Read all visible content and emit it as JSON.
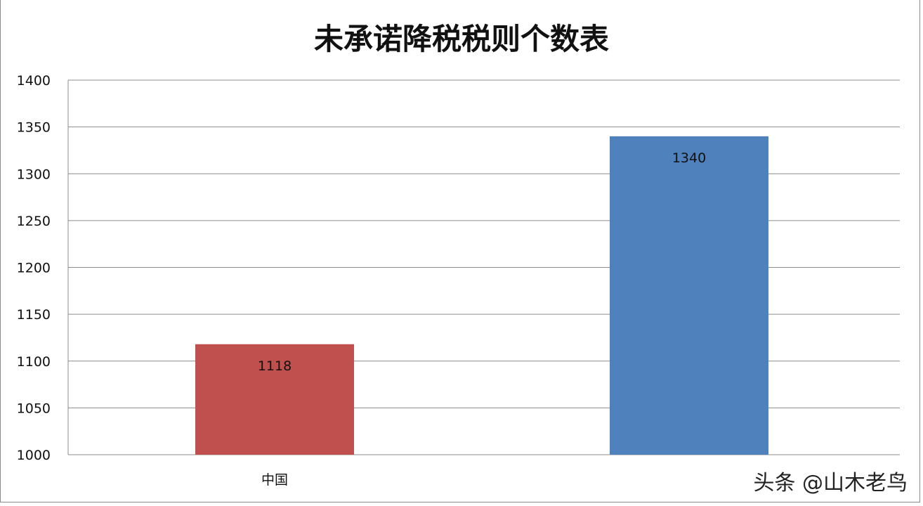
{
  "chart_data": {
    "type": "bar",
    "title": "未承诺降税税则个数表",
    "categories": [
      "中国",
      ""
    ],
    "values": [
      1118,
      1340
    ],
    "colors": [
      "#c0504d",
      "#4f81bd"
    ],
    "ylim": [
      1000,
      1400
    ],
    "yticks": [
      1000,
      1050,
      1100,
      1150,
      1200,
      1250,
      1300,
      1350,
      1400
    ],
    "grid": true,
    "data_labels": true
  },
  "watermark": "头条 @山木老鸟"
}
